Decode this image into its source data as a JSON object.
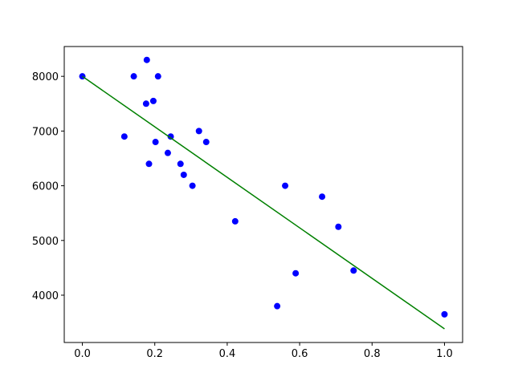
{
  "chart_data": {
    "type": "scatter",
    "xlim": [
      -0.05,
      1.05
    ],
    "ylim": [
      3135,
      8545
    ],
    "xticks": [
      {
        "value": 0,
        "label": "0.0"
      },
      {
        "value": 0.2,
        "label": "0.2"
      },
      {
        "value": 0.4,
        "label": "0.4"
      },
      {
        "value": 0.6,
        "label": "0.6"
      },
      {
        "value": 0.8,
        "label": "0.8"
      },
      {
        "value": 1,
        "label": "1.0"
      }
    ],
    "yticks": [
      4000,
      5000,
      6000,
      7000,
      8000
    ],
    "grid": false,
    "series": [
      {
        "type": "scatter",
        "color": "blue",
        "x": [
          0,
          0.142,
          0.178,
          0.209,
          0.176,
          0.196,
          0.116,
          0.244,
          0.322,
          0.342,
          0.202,
          0.236,
          0.184,
          0.271,
          0.28,
          0.304,
          0.56,
          0.662,
          0.422,
          0.707,
          0.749,
          0.589,
          0.538,
          1.0
        ],
        "values": [
          8000,
          8000,
          8300,
          8000,
          7500,
          7550,
          6900,
          6900,
          7000,
          6800,
          6800,
          6600,
          6400,
          6400,
          6200,
          6000,
          6000,
          5800,
          5350,
          5250,
          4450,
          4400,
          3800,
          3650
        ]
      },
      {
        "type": "line",
        "color": "green",
        "x": [
          0,
          1.0
        ],
        "values": [
          8000,
          3385
        ]
      }
    ]
  }
}
